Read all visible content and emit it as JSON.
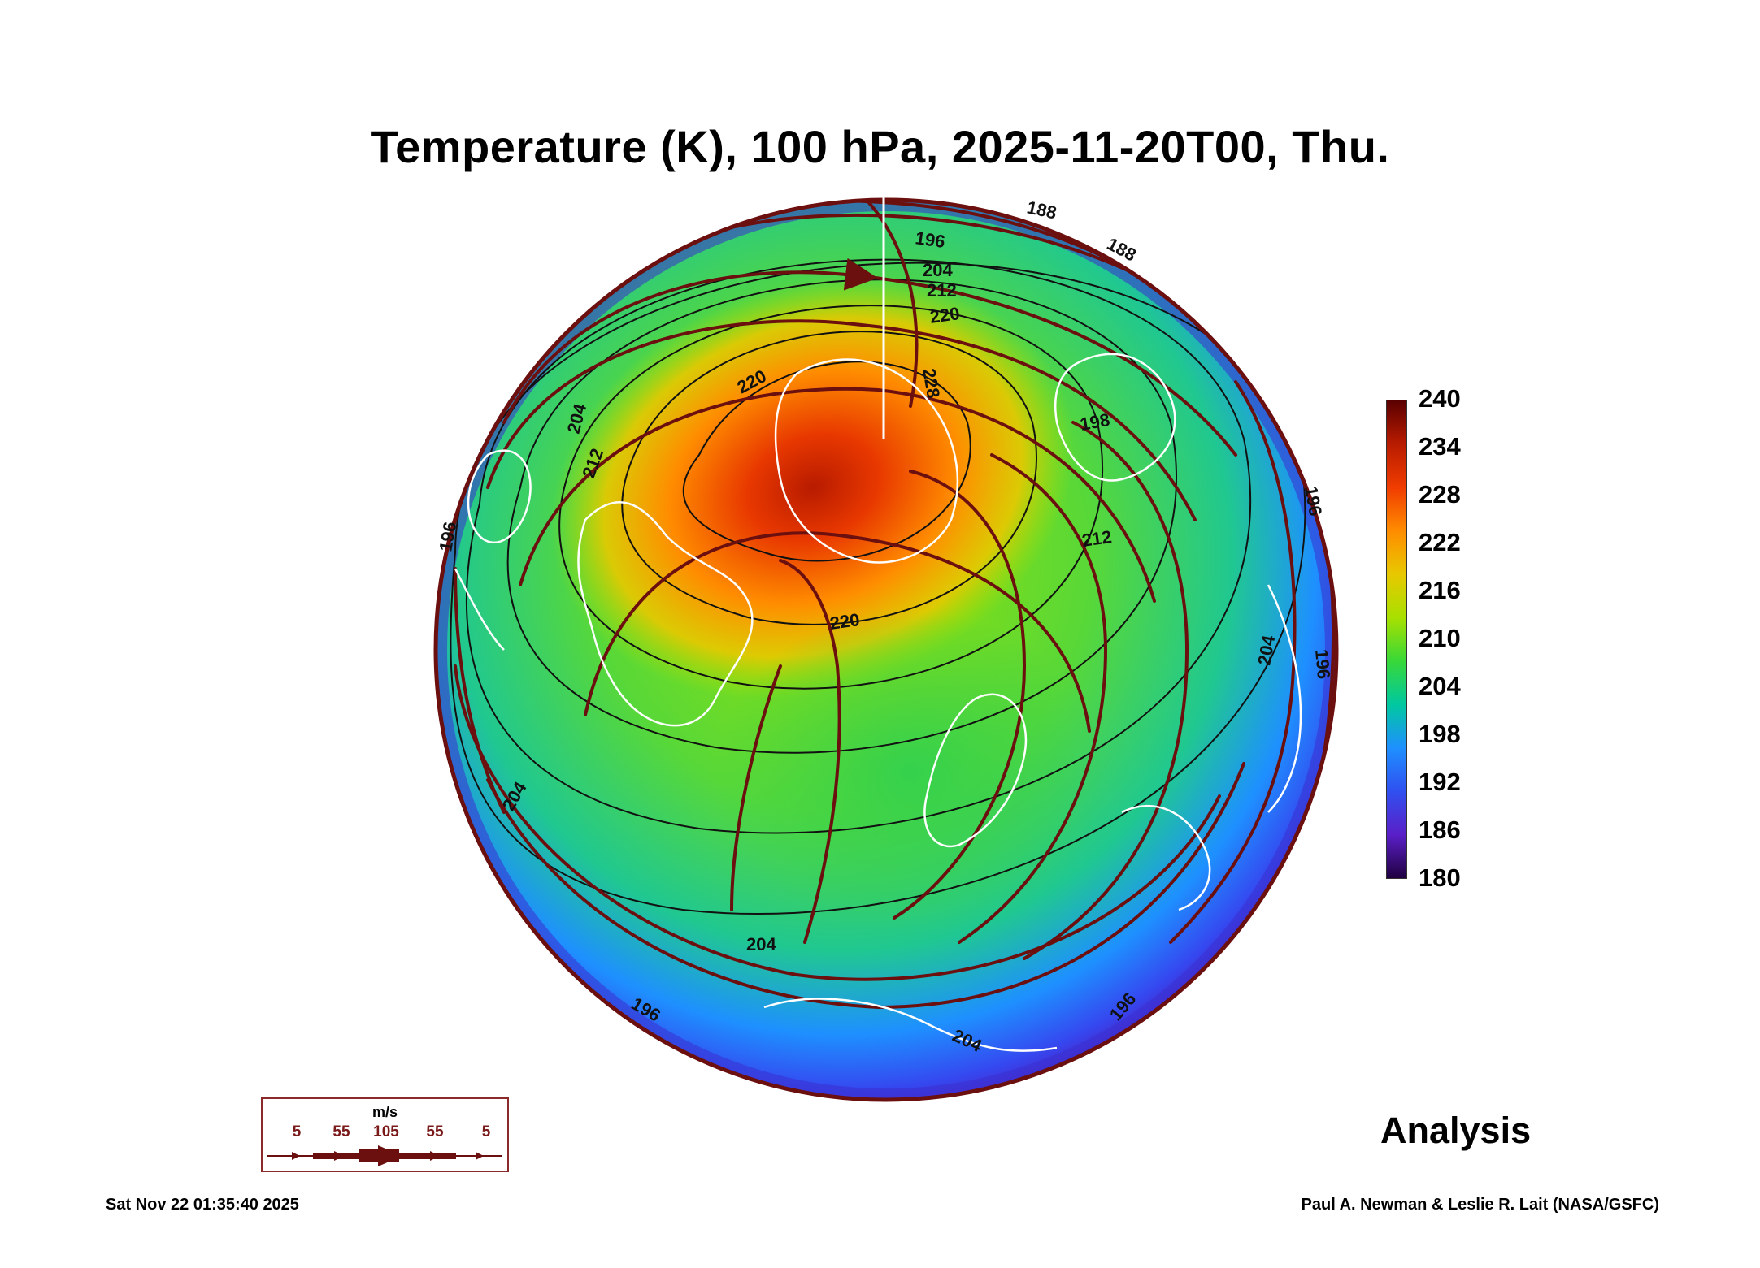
{
  "title": "Temperature (K), 100 hPa, 2025-11-20T00, Thu.",
  "analysis_label": "Analysis",
  "timestamp": "Sat Nov 22 01:35:40 2025",
  "credit": "Paul A. Newman & Leslie R. Lait (NASA/GSFC)",
  "colorbar": {
    "min": 180,
    "max": 240,
    "tick_labels": [
      "240",
      "234",
      "228",
      "222",
      "216",
      "210",
      "204",
      "198",
      "192",
      "186",
      "180"
    ],
    "colors": [
      "#5a0000",
      "#b81b00",
      "#f03c00",
      "#ff8c00",
      "#e8c800",
      "#a8e000",
      "#38d838",
      "#00c8a0",
      "#1e90ff",
      "#3050f0",
      "#5a1fc8",
      "#200040"
    ]
  },
  "wind_legend": {
    "units": "m/s",
    "values": [
      "5",
      "55",
      "105",
      "55",
      "5"
    ]
  },
  "contour_labels": [
    "188",
    "188",
    "196",
    "204",
    "212",
    "220",
    "228",
    "220",
    "212",
    "220",
    "212",
    "196",
    "204",
    "204",
    "204",
    "196",
    "204",
    "196",
    "204",
    "196",
    "198",
    "196"
  ],
  "colors": {
    "streamline": "#6b0f0f",
    "coastline": "#ffffff",
    "contour": "#111111",
    "legend_border": "#8b2a2a"
  }
}
